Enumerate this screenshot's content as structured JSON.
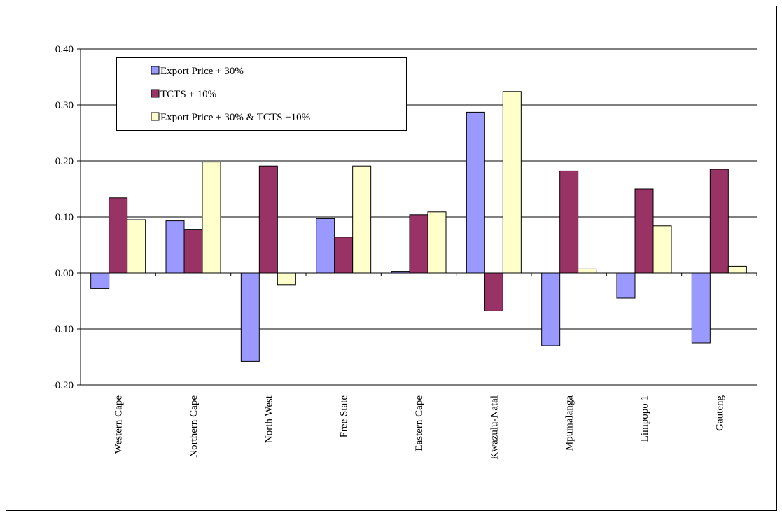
{
  "chart_data": {
    "type": "bar",
    "categories": [
      "Western Cape",
      "Northern Cape",
      "North West",
      "Free State",
      "Eastern Cape",
      "Kwazulu-Natal",
      "Mpumalanga",
      "Limpopo 1",
      "Gauteng"
    ],
    "series": [
      {
        "name": "Export Price + 30%",
        "color": "#9999ff",
        "values": [
          -0.028,
          0.093,
          -0.158,
          0.097,
          0.003,
          0.287,
          -0.13,
          -0.045,
          -0.125
        ]
      },
      {
        "name": "TCTS + 10%",
        "color": "#993366",
        "values": [
          0.134,
          0.078,
          0.191,
          0.064,
          0.104,
          -0.068,
          0.182,
          0.15,
          0.185
        ]
      },
      {
        "name": "Export Price + 30% & TCTS +10%",
        "color": "#ffffcc",
        "values": [
          0.095,
          0.198,
          -0.021,
          0.191,
          0.109,
          0.324,
          0.007,
          0.084,
          0.012
        ]
      }
    ],
    "ylim": [
      -0.2,
      0.4
    ],
    "yticks": [
      {
        "value": -0.2,
        "label": "-0.20"
      },
      {
        "value": -0.1,
        "label": "-0.10"
      },
      {
        "value": 0,
        "label": "0.00"
      },
      {
        "value": 0.1,
        "label": "0.10"
      },
      {
        "value": 0.2,
        "label": "0.20"
      },
      {
        "value": 0.3,
        "label": "0.30"
      },
      {
        "value": 0.4,
        "label": "0.40"
      }
    ],
    "grid": true,
    "legend": "top-left"
  }
}
